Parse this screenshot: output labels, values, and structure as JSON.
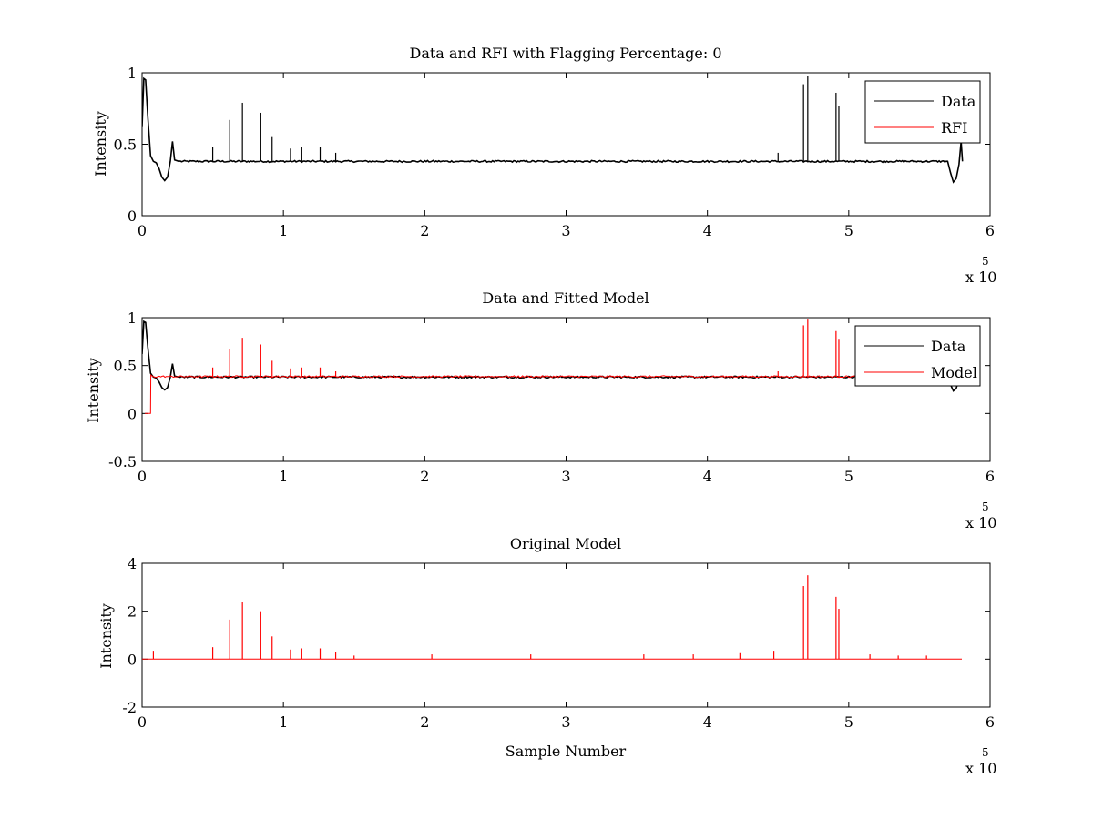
{
  "chart_data": [
    {
      "type": "line",
      "title": "Data and RFI with Flagging Percentage: 0",
      "xlabel": "",
      "ylabel": "Intensity",
      "xlim": [
        0,
        600000
      ],
      "ylim": [
        0,
        1
      ],
      "xticks": [
        0,
        1,
        2,
        3,
        4,
        5,
        6
      ],
      "yticks": [
        "0",
        "0.5",
        "1"
      ],
      "yticks_values": [
        0,
        0.5,
        1
      ],
      "x_multiplier": "x 10",
      "x_exponent": "5",
      "legend": {
        "position": "top-right",
        "entries": [
          "Data",
          "RFI"
        ]
      },
      "series": [
        {
          "name": "Data",
          "color": "#000000",
          "baseline": 0.38,
          "points": [
            [
              0,
              0.62
            ],
            [
              1200,
              0.96
            ],
            [
              2500,
              0.95
            ],
            [
              4000,
              0.7
            ],
            [
              6000,
              0.42
            ],
            [
              8000,
              0.38
            ],
            [
              10000,
              0.37
            ],
            [
              12000,
              0.33
            ],
            [
              14000,
              0.27
            ],
            [
              16000,
              0.245
            ],
            [
              18000,
              0.27
            ],
            [
              20000,
              0.38
            ],
            [
              21500,
              0.52
            ],
            [
              23000,
              0.39
            ],
            [
              26000,
              0.38
            ],
            [
              570000,
              0.38
            ],
            [
              572000,
              0.3
            ],
            [
              574000,
              0.235
            ],
            [
              576000,
              0.26
            ],
            [
              578000,
              0.36
            ],
            [
              579500,
              0.52
            ],
            [
              580500,
              0.38
            ]
          ],
          "spikes": [
            [
              50000,
              0.48
            ],
            [
              62000,
              0.67
            ],
            [
              71000,
              0.79
            ],
            [
              84000,
              0.72
            ],
            [
              92000,
              0.55
            ],
            [
              105000,
              0.47
            ],
            [
              113000,
              0.48
            ],
            [
              126000,
              0.48
            ],
            [
              137000,
              0.44
            ],
            [
              450000,
              0.44
            ],
            [
              468000,
              0.92
            ],
            [
              471000,
              0.98
            ],
            [
              491000,
              0.86
            ],
            [
              493000,
              0.77
            ]
          ]
        },
        {
          "name": "RFI",
          "color": "#ff0000"
        }
      ]
    },
    {
      "type": "line",
      "title": "Data and Fitted Model",
      "xlabel": "",
      "ylabel": "Intensity",
      "xlim": [
        0,
        600000
      ],
      "ylim": [
        -0.5,
        1
      ],
      "xticks": [
        0,
        1,
        2,
        3,
        4,
        5,
        6
      ],
      "yticks": [
        "-0.5",
        "0",
        "0.5",
        "1"
      ],
      "yticks_values": [
        -0.5,
        0,
        0.5,
        1
      ],
      "x_multiplier": "x 10",
      "x_exponent": "5",
      "legend": {
        "position": "top-right",
        "entries": [
          "Data",
          "Model"
        ]
      },
      "series": [
        {
          "name": "Data",
          "color": "#000000",
          "baseline": 0.38,
          "points": [
            [
              0,
              0.62
            ],
            [
              1200,
              0.96
            ],
            [
              2500,
              0.95
            ],
            [
              4000,
              0.7
            ],
            [
              6000,
              0.42
            ],
            [
              8000,
              0.38
            ],
            [
              10000,
              0.37
            ],
            [
              12000,
              0.33
            ],
            [
              14000,
              0.27
            ],
            [
              16000,
              0.245
            ],
            [
              18000,
              0.27
            ],
            [
              20000,
              0.38
            ],
            [
              21500,
              0.52
            ],
            [
              23000,
              0.39
            ],
            [
              26000,
              0.38
            ],
            [
              570000,
              0.38
            ],
            [
              572000,
              0.3
            ],
            [
              574000,
              0.235
            ],
            [
              576000,
              0.26
            ],
            [
              578000,
              0.36
            ],
            [
              579500,
              0.52
            ],
            [
              580500,
              0.38
            ]
          ],
          "spikes": []
        },
        {
          "name": "Model",
          "color": "#ff0000",
          "baseline": 0.385,
          "points": [
            [
              2000,
              0.0
            ],
            [
              6000,
              0.0
            ],
            [
              6200,
              0.4
            ],
            [
              580000,
              0.385
            ]
          ],
          "spikes": [
            [
              50000,
              0.48
            ],
            [
              62000,
              0.67
            ],
            [
              71000,
              0.79
            ],
            [
              84000,
              0.72
            ],
            [
              92000,
              0.55
            ],
            [
              105000,
              0.47
            ],
            [
              113000,
              0.48
            ],
            [
              126000,
              0.48
            ],
            [
              137000,
              0.44
            ],
            [
              450000,
              0.44
            ],
            [
              468000,
              0.92
            ],
            [
              471000,
              0.98
            ],
            [
              491000,
              0.86
            ],
            [
              493000,
              0.77
            ]
          ]
        }
      ]
    },
    {
      "type": "line",
      "title": "Original Model",
      "xlabel": "Sample Number",
      "ylabel": "Intensity",
      "xlim": [
        0,
        600000
      ],
      "ylim": [
        -2,
        4
      ],
      "xticks": [
        0,
        1,
        2,
        3,
        4,
        5,
        6
      ],
      "yticks": [
        "-2",
        "0",
        "2",
        "4"
      ],
      "yticks_values": [
        -2,
        0,
        2,
        4
      ],
      "x_multiplier": "x 10",
      "x_exponent": "5",
      "series": [
        {
          "name": "",
          "color": "#ff0000",
          "baseline": 0,
          "points": [
            [
              0,
              0
            ],
            [
              580000,
              0
            ]
          ],
          "spikes": [
            [
              8000,
              0.35
            ],
            [
              50000,
              0.5
            ],
            [
              62000,
              1.65
            ],
            [
              71000,
              2.4
            ],
            [
              84000,
              2.0
            ],
            [
              92000,
              0.95
            ],
            [
              105000,
              0.4
            ],
            [
              113000,
              0.45
            ],
            [
              126000,
              0.45
            ],
            [
              137000,
              0.3
            ],
            [
              150000,
              0.15
            ],
            [
              205000,
              0.2
            ],
            [
              275000,
              0.2
            ],
            [
              355000,
              0.2
            ],
            [
              390000,
              0.2
            ],
            [
              423000,
              0.25
            ],
            [
              447000,
              0.35
            ],
            [
              468000,
              3.05
            ],
            [
              471000,
              3.5
            ],
            [
              491000,
              2.6
            ],
            [
              493000,
              2.1
            ],
            [
              515000,
              0.2
            ],
            [
              535000,
              0.15
            ],
            [
              555000,
              0.15
            ]
          ]
        }
      ]
    }
  ]
}
